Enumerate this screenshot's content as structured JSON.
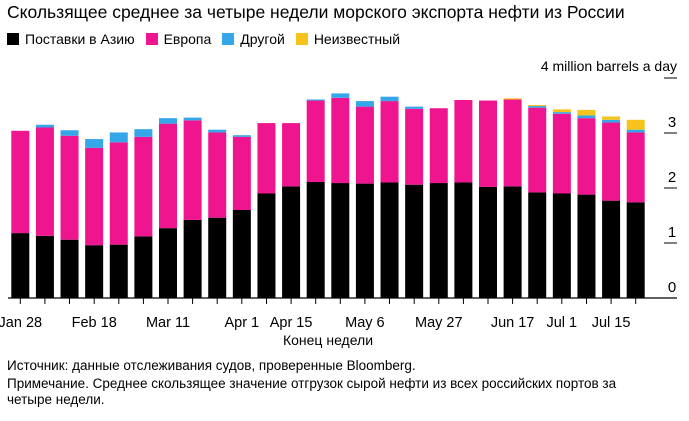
{
  "chart_data": {
    "type": "bar",
    "stacked": true,
    "title": "Скользящее среднее за четыре недели морского экспорта нефти из России",
    "unit_label": "4 million barrels a day",
    "xlabel": "Конец недели",
    "ylabel": "",
    "ylim": [
      0,
      4
    ],
    "yticks": [
      "0",
      "1",
      "2",
      "3"
    ],
    "grid": false,
    "legend_position": "top-left",
    "x": [
      "Jan 28",
      "Feb 4",
      "Feb 11",
      "Feb 18",
      "Feb 25",
      "Mar 4",
      "Mar 11",
      "Mar 18",
      "Mar 25",
      "Apr 1",
      "Apr 8",
      "Apr 15",
      "Apr 22",
      "Apr 29",
      "May 6",
      "May 13",
      "May 20",
      "May 27",
      "Jun 3",
      "Jun 10",
      "Jun 17",
      "Jun 24",
      "Jul 1",
      "Jul 8",
      "Jul 15",
      "Jul 22"
    ],
    "tick_labels": [
      {
        "label": "Jan 28",
        "index": 0
      },
      {
        "label": "Feb 18",
        "index": 3
      },
      {
        "label": "Mar 11",
        "index": 6
      },
      {
        "label": "Apr 1",
        "index": 9
      },
      {
        "label": "Apr 15",
        "index": 11
      },
      {
        "label": "May 6",
        "index": 14
      },
      {
        "label": "May 27",
        "index": 17
      },
      {
        "label": "Jun 17",
        "index": 20
      },
      {
        "label": "Jul 1",
        "index": 22
      },
      {
        "label": "Jul 15",
        "index": 24
      }
    ],
    "series": [
      {
        "name": "Поставки в Азию",
        "color": "#000000",
        "values": [
          1.18,
          1.13,
          1.06,
          0.96,
          0.97,
          1.12,
          1.27,
          1.42,
          1.46,
          1.6,
          1.9,
          2.03,
          2.11,
          2.09,
          2.08,
          2.1,
          2.06,
          2.09,
          2.1,
          2.02,
          2.03,
          1.92,
          1.9,
          1.88,
          1.77,
          1.74
        ]
      },
      {
        "name": "Европа",
        "color": "#ee158f",
        "values": [
          1.86,
          1.97,
          1.89,
          1.77,
          1.86,
          1.81,
          1.9,
          1.81,
          1.55,
          1.33,
          1.28,
          1.15,
          1.48,
          1.55,
          1.4,
          1.48,
          1.38,
          1.36,
          1.5,
          1.57,
          1.58,
          1.54,
          1.45,
          1.39,
          1.42,
          1.27
        ]
      },
      {
        "name": "Другой",
        "color": "#35a6e8",
        "values": [
          0.0,
          0.05,
          0.1,
          0.16,
          0.18,
          0.14,
          0.1,
          0.05,
          0.05,
          0.03,
          0.0,
          0.0,
          0.02,
          0.08,
          0.1,
          0.08,
          0.04,
          0.0,
          0.0,
          0.0,
          0.0,
          0.03,
          0.03,
          0.05,
          0.05,
          0.05
        ]
      },
      {
        "name": "Неизвестный",
        "color": "#f6c31c",
        "values": [
          0.0,
          0.0,
          0.0,
          0.0,
          0.0,
          0.0,
          0.0,
          0.0,
          0.0,
          0.0,
          0.0,
          0.0,
          0.0,
          0.0,
          0.0,
          0.0,
          0.0,
          0.0,
          0.0,
          0.0,
          0.02,
          0.02,
          0.05,
          0.1,
          0.06,
          0.18
        ]
      }
    ]
  },
  "source_note": "Источник: данные отслеживания судов, проверенные Bloomberg.",
  "note_line1": "Примечание. Среднее скользящее значение отгрузок сырой нефти из всех российских портов за",
  "note_line2": "четыре недели."
}
